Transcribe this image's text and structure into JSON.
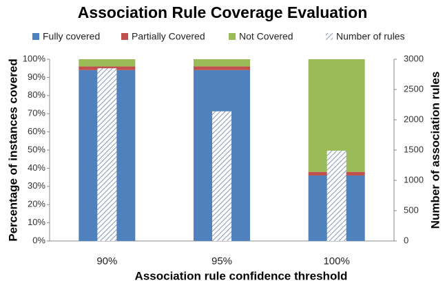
{
  "chart_data": {
    "type": "bar",
    "stacked": true,
    "title": "Association Rule Coverage Evaluation",
    "x_label": "Association rule confidence threshold",
    "y_label": "Percentage of instances covered",
    "y2_label": "Number of association rules",
    "categories": [
      "90%",
      "95%",
      "100%"
    ],
    "series": [
      {
        "name": "Fully covered",
        "color": "#4f81bd",
        "values": [
          94,
          94,
          36
        ]
      },
      {
        "name": "Partially Covered",
        "color": "#c0504d",
        "values": [
          2,
          2,
          2
        ]
      },
      {
        "name": "Not Covered",
        "color": "#9bbb59",
        "values": [
          4,
          4,
          62
        ]
      },
      {
        "name": "Number of rules",
        "color": "#8e9cbf",
        "pattern": "hatch",
        "axis": "y2",
        "values": [
          2850,
          2140,
          1490
        ]
      }
    ],
    "ylim": [
      0,
      100
    ],
    "yticks": [
      {
        "value": 0,
        "label": "0%"
      },
      {
        "value": 10,
        "label": "10%"
      },
      {
        "value": 20,
        "label": "20%"
      },
      {
        "value": 30,
        "label": "30%"
      },
      {
        "value": 40,
        "label": "40%"
      },
      {
        "value": 50,
        "label": "50%"
      },
      {
        "value": 60,
        "label": "60%"
      },
      {
        "value": 70,
        "label": "70%"
      },
      {
        "value": 80,
        "label": "80%"
      },
      {
        "value": 90,
        "label": "90%"
      },
      {
        "value": 100,
        "label": "100%"
      }
    ],
    "y2lim": [
      0,
      3000
    ],
    "y2ticks": [
      0,
      500,
      1000,
      1500,
      2000,
      2500,
      3000
    ],
    "legend": "top"
  }
}
